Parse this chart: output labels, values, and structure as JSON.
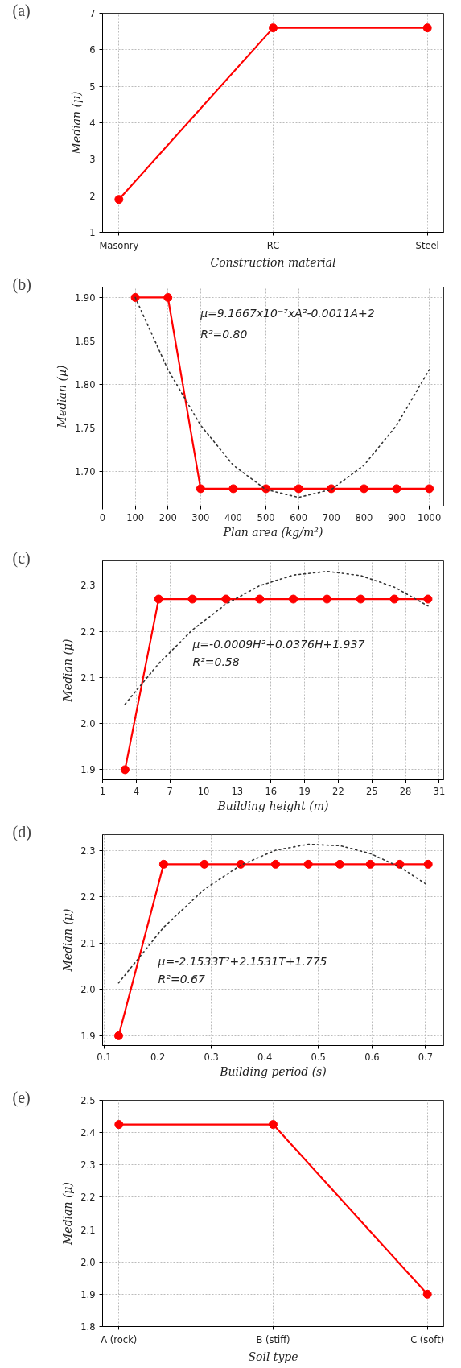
{
  "chart_data": [
    {
      "type": "line",
      "title": "(a)",
      "xlabel": "Construction material",
      "ylabel": "Median (μ)",
      "categories": [
        "Masonry",
        "RC",
        "Steel"
      ],
      "series": [
        {
          "color": "#ff0000",
          "values": [
            1.9,
            6.6,
            6.6
          ],
          "marker": "circle",
          "line_style": "solid"
        }
      ],
      "ylim": [
        1,
        7
      ],
      "yticks": [
        1,
        2,
        3,
        4,
        5,
        6,
        7
      ],
      "grid": true
    },
    {
      "type": "line",
      "title": "(b)",
      "xlabel": "Plan area (kg/m²)",
      "ylabel": "Median (μ)",
      "x": [
        100,
        200,
        300,
        400,
        500,
        600,
        700,
        800,
        900,
        1000
      ],
      "series": [
        {
          "color": "#ff0000",
          "values": [
            1.9,
            1.9,
            1.68,
            1.68,
            1.68,
            1.68,
            1.68,
            1.68,
            1.68,
            1.68
          ],
          "marker": "circle",
          "line_style": "solid"
        },
        {
          "color": "#333333",
          "values": [
            1.9,
            1.817,
            1.753,
            1.707,
            1.679,
            1.67,
            1.679,
            1.707,
            1.753,
            1.817
          ],
          "marker": "none",
          "line_style": "dotted"
        }
      ],
      "xlim": [
        0,
        1044
      ],
      "xticks": [
        0,
        100,
        200,
        300,
        400,
        500,
        600,
        700,
        800,
        900,
        1000
      ],
      "ylim": [
        1.66,
        1.912
      ],
      "yticks": [
        {
          "value": 1.7,
          "label": "1.70"
        },
        {
          "value": 1.75,
          "label": "1.75"
        },
        {
          "value": 1.8,
          "label": "1.80"
        },
        {
          "value": 1.85,
          "label": "1.85"
        },
        {
          "value": 1.9,
          "label": "1.90"
        }
      ],
      "annotations": [
        "μ=9.1667x10⁻⁷xA²-0.0011A+2",
        "R²=0.80"
      ],
      "grid": true
    },
    {
      "type": "line",
      "title": "(c)",
      "xlabel": "Building height (m)",
      "ylabel": "Median (μ)",
      "x": [
        3,
        6,
        9,
        12,
        15,
        18,
        21,
        24,
        27,
        30
      ],
      "series": [
        {
          "color": "#ff0000",
          "values": [
            1.9,
            2.27,
            2.27,
            2.27,
            2.27,
            2.27,
            2.27,
            2.27,
            2.27,
            2.27
          ],
          "marker": "circle",
          "line_style": "solid"
        },
        {
          "color": "#333333",
          "values": [
            2.042,
            2.13,
            2.203,
            2.259,
            2.299,
            2.322,
            2.33,
            2.321,
            2.296,
            2.255
          ],
          "marker": "none",
          "line_style": "dotted"
        }
      ],
      "xlim": [
        1,
        31.4
      ],
      "xticks": [
        1,
        4,
        7,
        10,
        13,
        16,
        19,
        22,
        25,
        28,
        31
      ],
      "ylim": [
        1.878,
        2.353
      ],
      "yticks": [
        1.9,
        {
          "value": 2,
          "label": "2.0"
        },
        2.1,
        2.2,
        2.3
      ],
      "annotations": [
        "μ=-0.0009H²+0.0376H+1.937",
        "R²=0.58"
      ],
      "grid": true
    },
    {
      "type": "line",
      "title": "(d)",
      "xlabel": "Building period (s)",
      "ylabel": "Median (μ)",
      "x": [
        0.127,
        0.211,
        0.287,
        0.355,
        0.42,
        0.481,
        0.54,
        0.597,
        0.652,
        0.705
      ],
      "series": [
        {
          "color": "#ff0000",
          "values": [
            1.9,
            2.27,
            2.27,
            2.27,
            2.27,
            2.27,
            2.27,
            2.27,
            2.27,
            2.27
          ],
          "marker": "circle",
          "line_style": "solid"
        },
        {
          "color": "#333333",
          "values": [
            2.014,
            2.134,
            2.216,
            2.268,
            2.3,
            2.313,
            2.31,
            2.293,
            2.264,
            2.224
          ],
          "marker": "none",
          "line_style": "dotted"
        }
      ],
      "xlim": [
        0.097,
        0.734
      ],
      "xticks": [
        0.1,
        0.2,
        0.3,
        0.4,
        0.5,
        0.6,
        0.7
      ],
      "ylim": [
        1.879,
        2.334
      ],
      "yticks": [
        1.9,
        {
          "value": 2,
          "label": "2.0"
        },
        2.1,
        2.2,
        2.3
      ],
      "annotations": [
        "μ=-2.1533T²+2.1531T+1.775",
        "R²=0.67"
      ],
      "grid": true
    },
    {
      "type": "line",
      "title": "(e)",
      "xlabel": "Soil type",
      "ylabel": "Median (μ)",
      "categories": [
        "A (rock)",
        "B (stiff)",
        "C (soft)"
      ],
      "series": [
        {
          "color": "#ff0000",
          "values": [
            2.425,
            2.425,
            1.9
          ],
          "marker": "circle",
          "line_style": "solid"
        }
      ],
      "ylim": [
        1.8,
        2.5
      ],
      "yticks": [
        1.8,
        1.9,
        {
          "value": 2,
          "label": "2.0"
        },
        2.1,
        2.2,
        2.3,
        2.4,
        2.5
      ],
      "grid": true
    }
  ]
}
